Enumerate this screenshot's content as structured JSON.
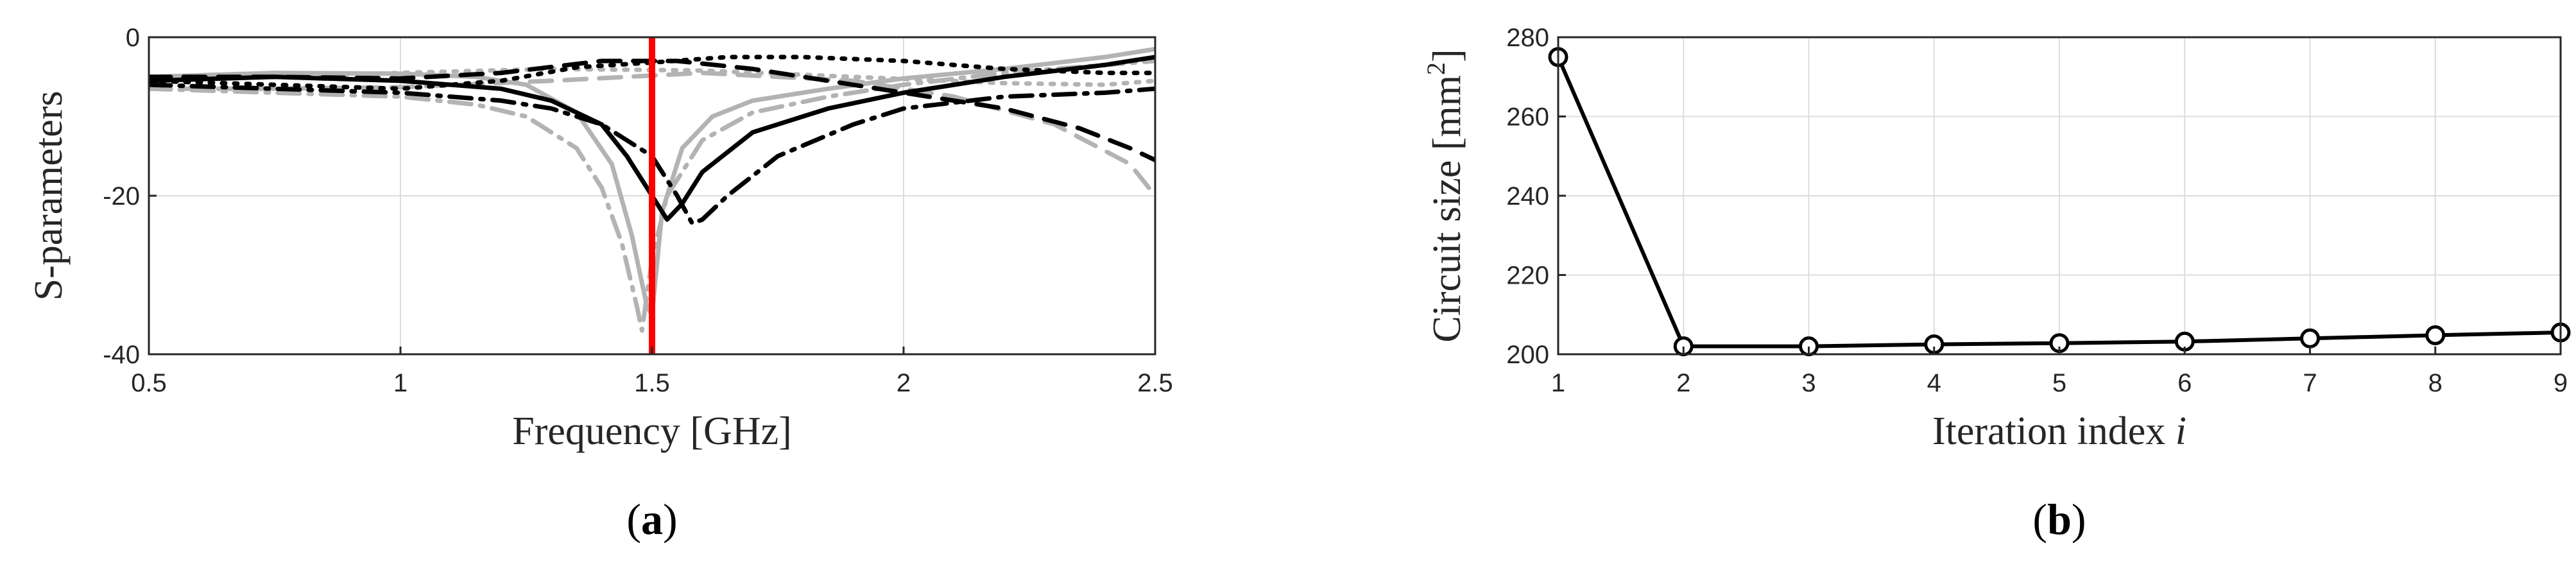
{
  "chart_data": [
    {
      "type": "line",
      "panel_label": {
        "open": "(",
        "letter": "a",
        "close": ")"
      },
      "xlabel": "Frequency [GHz]",
      "ylabel": "S-parameters",
      "xlim": [
        0.5,
        2.5
      ],
      "ylim": [
        -40,
        0
      ],
      "xticks": [
        0.5,
        1,
        1.5,
        2,
        2.5
      ],
      "xtick_labels": [
        "0.5",
        "1",
        "1.5",
        "2",
        "2.5"
      ],
      "yticks": [
        -40,
        -20,
        0
      ],
      "ytick_labels": [
        "-40",
        "-20",
        "0"
      ],
      "grid": true,
      "legend": "none",
      "marker_line": {
        "x": 1.5,
        "color": "#ff0000"
      },
      "series": [
        {
          "style": "solid",
          "color": "#b3b3b3",
          "x": [
            0.5,
            0.75,
            1.0,
            1.15,
            1.25,
            1.35,
            1.42,
            1.46,
            1.49,
            1.5,
            1.52,
            1.56,
            1.62,
            1.7,
            1.85,
            2.0,
            2.2,
            2.4,
            2.5
          ],
          "y": [
            -5,
            -4.5,
            -4.6,
            -5,
            -6,
            -9.5,
            -16,
            -25,
            -34,
            -35,
            -22,
            -14,
            -10,
            -8,
            -6.5,
            -5.2,
            -4,
            -2.5,
            -1.5
          ]
        },
        {
          "style": "dashdot",
          "color": "#b3b3b3",
          "x": [
            0.5,
            0.75,
            1.0,
            1.15,
            1.25,
            1.35,
            1.4,
            1.44,
            1.47,
            1.48,
            1.5,
            1.53,
            1.6,
            1.7,
            1.85,
            2.0,
            2.2,
            2.4,
            2.5
          ],
          "y": [
            -6.5,
            -7,
            -7.5,
            -8.5,
            -10,
            -14,
            -19,
            -26,
            -34,
            -37,
            -28,
            -20,
            -13,
            -9.5,
            -7.5,
            -6,
            -4.5,
            -3.5,
            -3
          ]
        },
        {
          "style": "dotted",
          "color": "#b3b3b3",
          "x": [
            0.5,
            0.75,
            1.0,
            1.3,
            1.6,
            1.9,
            2.2,
            2.4,
            2.5
          ],
          "y": [
            -5.5,
            -5,
            -4.5,
            -4,
            -4.2,
            -5,
            -5.8,
            -6,
            -5.5
          ]
        },
        {
          "style": "dashed",
          "color": "#b3b3b3",
          "x": [
            0.5,
            0.75,
            1.0,
            1.3,
            1.6,
            1.9,
            2.1,
            2.3,
            2.45,
            2.5
          ],
          "y": [
            -6.5,
            -6.5,
            -6.3,
            -5.5,
            -4.5,
            -5.5,
            -7.5,
            -11,
            -16,
            -20
          ]
        },
        {
          "style": "solid",
          "color": "#000000",
          "x": [
            0.5,
            0.75,
            1.0,
            1.2,
            1.3,
            1.4,
            1.45,
            1.5,
            1.53,
            1.56,
            1.6,
            1.7,
            1.85,
            2.0,
            2.2,
            2.4,
            2.5
          ],
          "y": [
            -5.5,
            -5,
            -5.5,
            -6.5,
            -8,
            -11,
            -15,
            -20,
            -23,
            -21,
            -17,
            -12,
            -9,
            -7,
            -5,
            -3.5,
            -2.5
          ]
        },
        {
          "style": "dashdot",
          "color": "#000000",
          "x": [
            0.5,
            0.75,
            1.0,
            1.2,
            1.3,
            1.4,
            1.5,
            1.55,
            1.58,
            1.6,
            1.65,
            1.75,
            1.9,
            2.0,
            2.2,
            2.4,
            2.5
          ],
          "y": [
            -6,
            -6.5,
            -7,
            -8,
            -9,
            -11,
            -15,
            -20,
            -23.5,
            -23,
            -20,
            -15,
            -11,
            -9,
            -7.5,
            -7,
            -6.5
          ]
        },
        {
          "style": "dotted",
          "color": "#000000",
          "x": [
            0.5,
            0.75,
            1.0,
            1.2,
            1.35,
            1.5,
            1.65,
            1.8,
            2.0,
            2.2,
            2.4,
            2.5
          ],
          "y": [
            -5.5,
            -6,
            -6.5,
            -5.5,
            -3.8,
            -3.2,
            -2.5,
            -2.5,
            -3,
            -4,
            -4.5,
            -4.5
          ]
        },
        {
          "style": "dashed",
          "color": "#000000",
          "x": [
            0.5,
            0.75,
            1.0,
            1.2,
            1.4,
            1.55,
            1.7,
            1.85,
            2.0,
            2.2,
            2.35,
            2.45,
            2.5
          ],
          "y": [
            -5,
            -5,
            -5.2,
            -4.5,
            -3,
            -3,
            -4,
            -5.5,
            -7,
            -9,
            -11.5,
            -14,
            -15.5
          ]
        }
      ]
    },
    {
      "type": "line",
      "panel_label": {
        "open": "(",
        "letter": "b",
        "close": ")"
      },
      "xlabel": {
        "main": "Iteration index ",
        "italic": "i"
      },
      "ylabel": {
        "main": "Circuit size [mm",
        "sup": "2",
        "close": "]"
      },
      "xlim": [
        1,
        9
      ],
      "ylim": [
        200,
        280
      ],
      "xticks": [
        1,
        2,
        3,
        4,
        5,
        6,
        7,
        8,
        9
      ],
      "xtick_labels": [
        "1",
        "2",
        "3",
        "4",
        "5",
        "6",
        "7",
        "8",
        "9"
      ],
      "yticks": [
        200,
        220,
        240,
        260,
        280
      ],
      "ytick_labels": [
        "200",
        "220",
        "240",
        "260",
        "280"
      ],
      "grid": true,
      "legend": "none",
      "marker": "circle",
      "series": [
        {
          "color": "#000000",
          "x": [
            1,
            2,
            3,
            4,
            5,
            6,
            7,
            8,
            9
          ],
          "values": [
            275,
            202,
            202,
            202.5,
            202.8,
            203.2,
            204,
            204.8,
            205.5
          ]
        }
      ]
    }
  ]
}
